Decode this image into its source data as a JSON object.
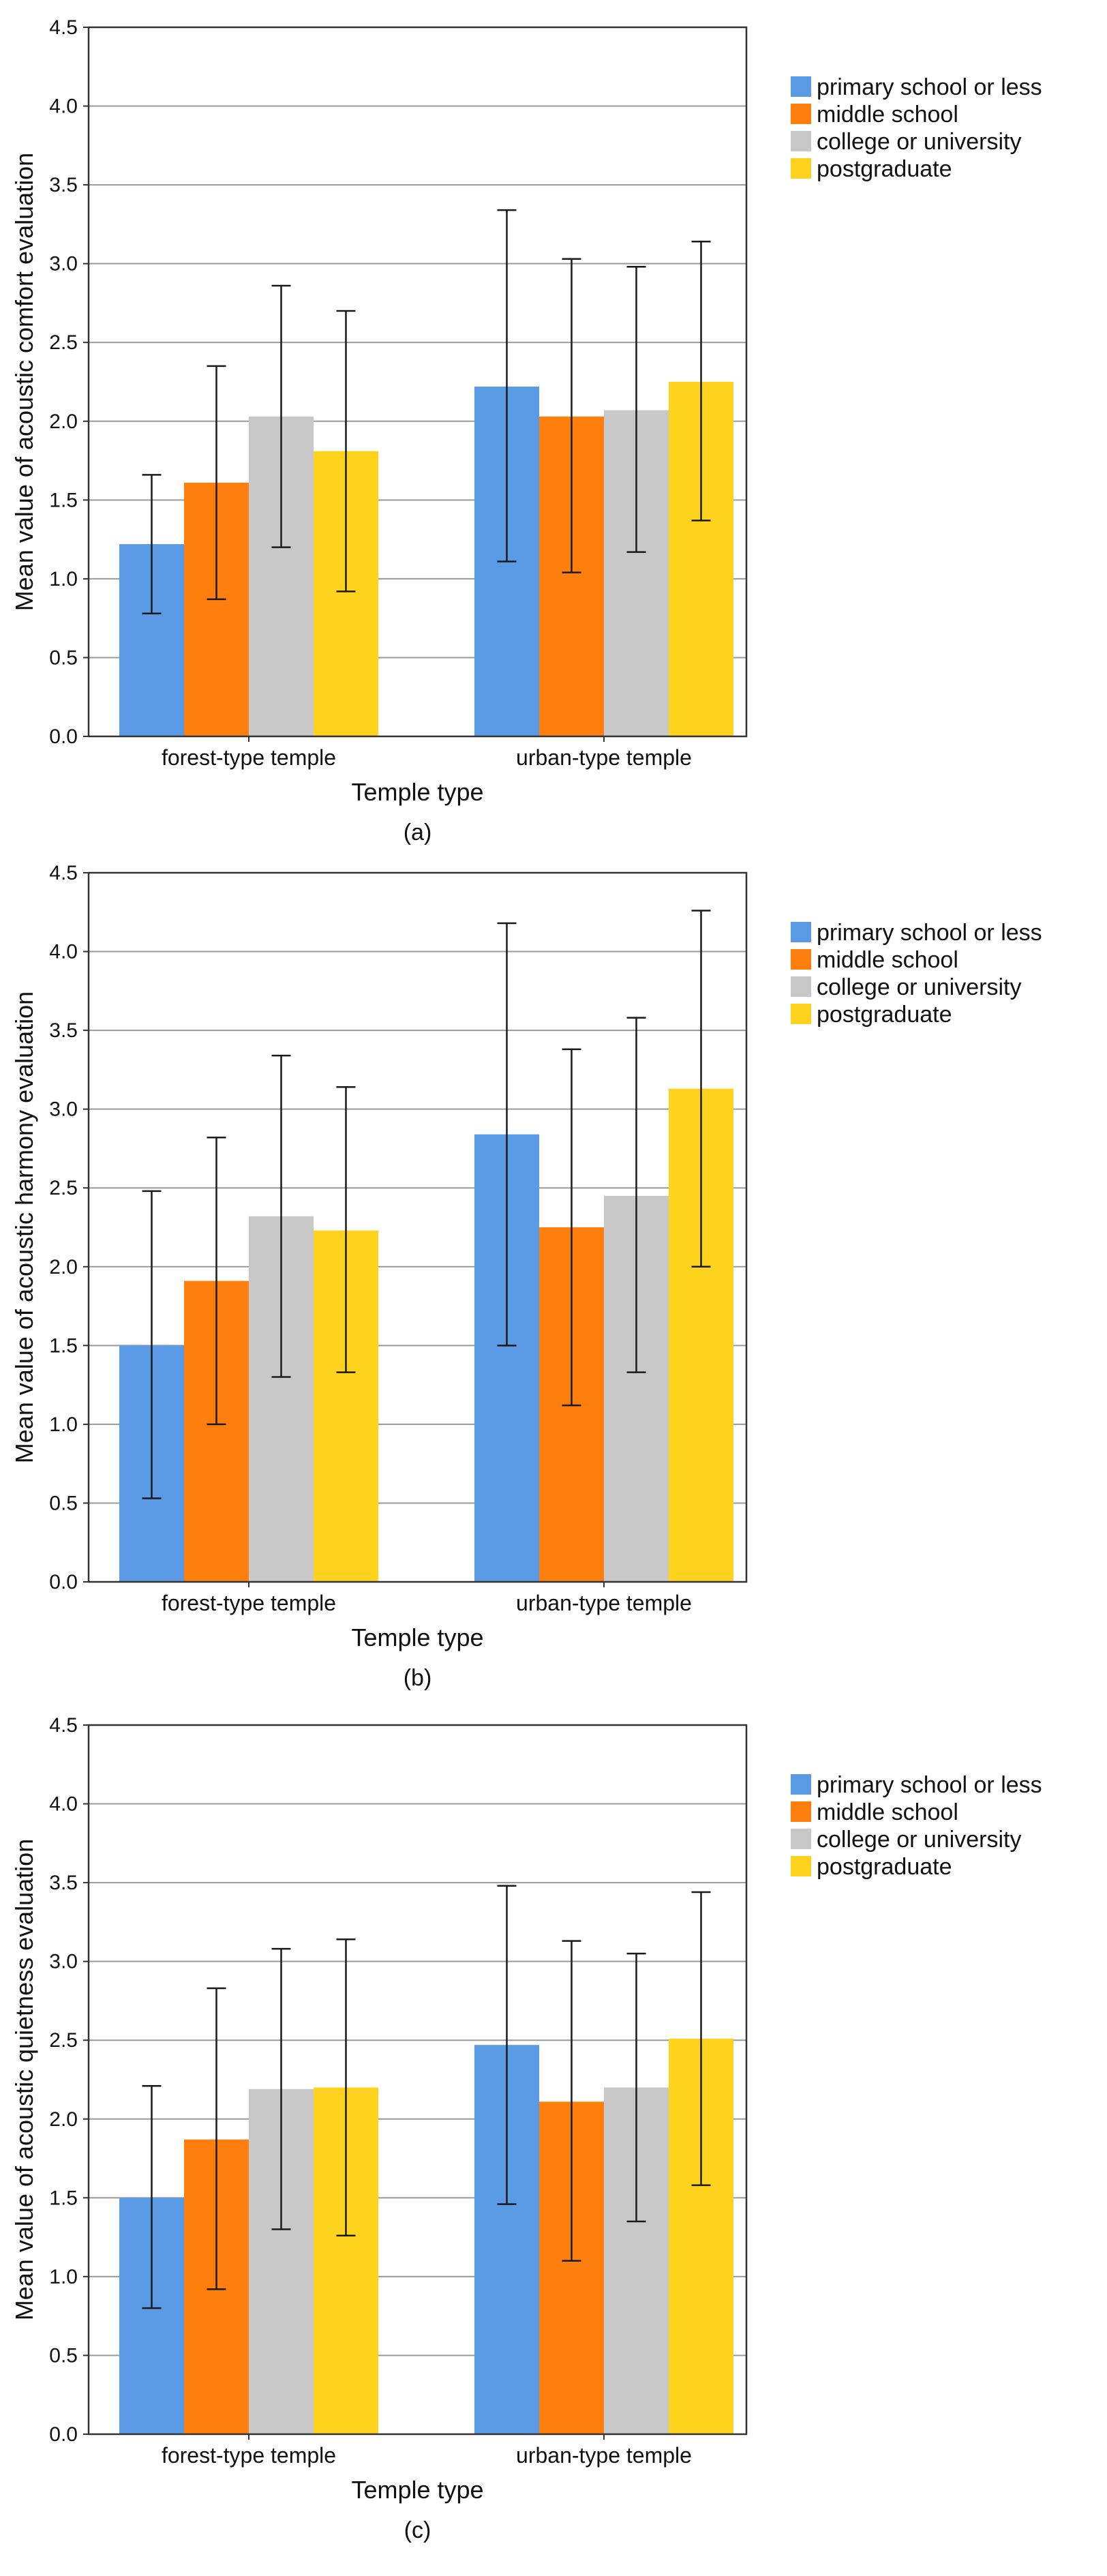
{
  "colors": {
    "primary": "#5B9BE6",
    "middle": "#FF7F0E",
    "college": "#C8C8C8",
    "postgraduate": "#FFD21E",
    "grid": "#9A9A9A",
    "axis": "#333333",
    "errorbar": "#1A1A1A"
  },
  "chart_data": [
    {
      "type": "bar",
      "panel_label": "(a)",
      "title": "",
      "xlabel": "Temple type",
      "ylabel": "Mean value of acoustic comfort evaluation",
      "ylim": [
        0,
        4.5
      ],
      "yticks": [
        "0.0",
        "0.5",
        "1.0",
        "1.5",
        "2.0",
        "2.5",
        "3.0",
        "3.5",
        "4.0",
        "4.5"
      ],
      "categories": [
        "forest-type temple",
        "urban-type temple"
      ],
      "legend_position": "right",
      "grid": true,
      "series": [
        {
          "name": "primary school or less",
          "color_key": "primary",
          "values": [
            1.22,
            2.22
          ],
          "err_low": [
            0.78,
            1.11
          ],
          "err_high": [
            1.66,
            3.34
          ]
        },
        {
          "name": "middle school",
          "color_key": "middle",
          "values": [
            1.61,
            2.03
          ],
          "err_low": [
            0.87,
            1.04
          ],
          "err_high": [
            2.35,
            3.03
          ]
        },
        {
          "name": "college or university",
          "color_key": "college",
          "values": [
            2.03,
            2.07
          ],
          "err_low": [
            1.2,
            1.17
          ],
          "err_high": [
            2.86,
            2.98
          ]
        },
        {
          "name": "postgraduate",
          "color_key": "postgraduate",
          "values": [
            1.81,
            2.25
          ],
          "err_low": [
            0.92,
            1.37
          ],
          "err_high": [
            2.7,
            3.14
          ]
        }
      ]
    },
    {
      "type": "bar",
      "panel_label": "(b)",
      "title": "",
      "xlabel": "Temple type",
      "ylabel": "Mean value of acoustic harmony evaluation",
      "ylim": [
        0,
        4.5
      ],
      "yticks": [
        "0.0",
        "0.5",
        "1.0",
        "1.5",
        "2.0",
        "2.5",
        "3.0",
        "3.5",
        "4.0",
        "4.5"
      ],
      "categories": [
        "forest-type temple",
        "urban-type temple"
      ],
      "legend_position": "right",
      "grid": true,
      "series": [
        {
          "name": "primary school or less",
          "color_key": "primary",
          "values": [
            1.5,
            2.84
          ],
          "err_low": [
            0.53,
            1.5
          ],
          "err_high": [
            2.48,
            4.18
          ]
        },
        {
          "name": "middle school",
          "color_key": "middle",
          "values": [
            1.91,
            2.25
          ],
          "err_low": [
            1.0,
            1.12
          ],
          "err_high": [
            2.82,
            3.38
          ]
        },
        {
          "name": "college or university",
          "color_key": "college",
          "values": [
            2.32,
            2.45
          ],
          "err_low": [
            1.3,
            1.33
          ],
          "err_high": [
            3.34,
            3.58
          ]
        },
        {
          "name": "postgraduate",
          "color_key": "postgraduate",
          "values": [
            2.23,
            3.13
          ],
          "err_low": [
            1.33,
            2.0
          ],
          "err_high": [
            3.14,
            4.26
          ]
        }
      ]
    },
    {
      "type": "bar",
      "panel_label": "(c)",
      "title": "",
      "xlabel": "Temple type",
      "ylabel": "Mean value of acoustic quietness evaluation",
      "ylim": [
        0,
        4.5
      ],
      "yticks": [
        "0.0",
        "0.5",
        "1.0",
        "1.5",
        "2.0",
        "2.5",
        "3.0",
        "3.5",
        "4.0",
        "4.5"
      ],
      "categories": [
        "forest-type temple",
        "urban-type temple"
      ],
      "legend_position": "right",
      "grid": true,
      "series": [
        {
          "name": "primary school or less",
          "color_key": "primary",
          "values": [
            1.5,
            2.47
          ],
          "err_low": [
            0.8,
            1.46
          ],
          "err_high": [
            2.21,
            3.48
          ]
        },
        {
          "name": "middle school",
          "color_key": "middle",
          "values": [
            1.87,
            2.11
          ],
          "err_low": [
            0.92,
            1.1
          ],
          "err_high": [
            2.83,
            3.13
          ]
        },
        {
          "name": "college or university",
          "color_key": "college",
          "values": [
            2.19,
            2.2
          ],
          "err_low": [
            1.3,
            1.35
          ],
          "err_high": [
            3.08,
            3.05
          ]
        },
        {
          "name": "postgraduate",
          "color_key": "postgraduate",
          "values": [
            2.2,
            2.51
          ],
          "err_low": [
            1.26,
            1.58
          ],
          "err_high": [
            3.14,
            3.44
          ]
        }
      ]
    }
  ]
}
